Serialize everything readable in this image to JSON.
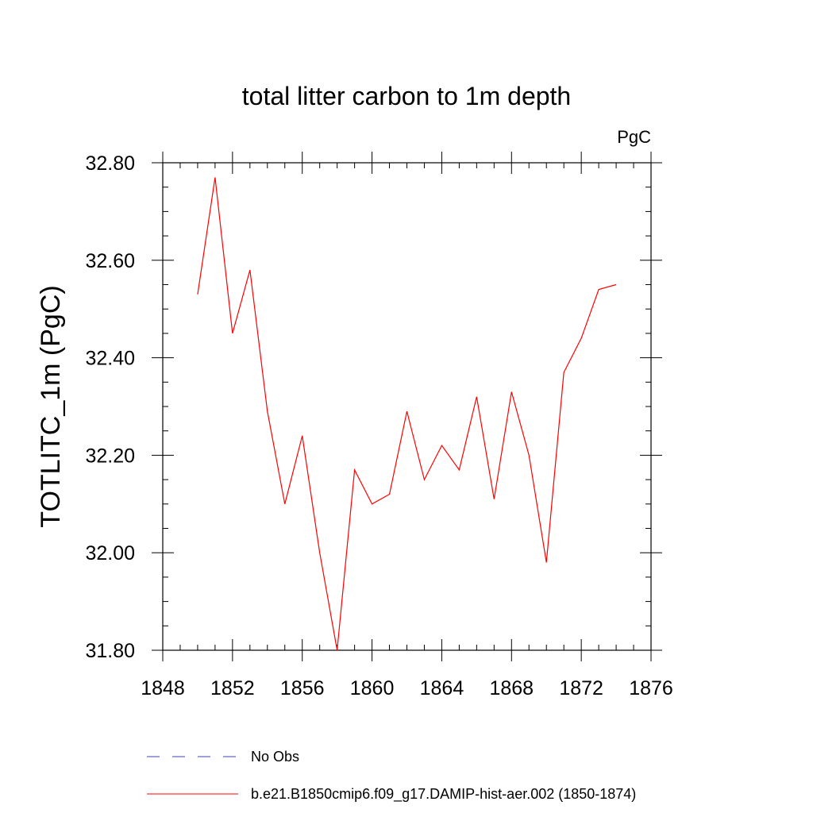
{
  "chart_data": {
    "type": "line",
    "title": "total litter carbon to 1m depth",
    "units": "PgC",
    "xlabel": "",
    "ylabel": "TOTLITC_1m  (PgC)",
    "xlim": [
      1848,
      1876
    ],
    "ylim": [
      31.8,
      32.8
    ],
    "x_ticks": [
      "1848",
      "1852",
      "1856",
      "1860",
      "1864",
      "1868",
      "1872",
      "1876"
    ],
    "y_ticks": [
      "31.80",
      "32.00",
      "32.20",
      "32.40",
      "32.60",
      "32.80"
    ],
    "grid": false,
    "series": [
      {
        "name": "b.e21.B1850cmip6.f09_g17.DAMIP-hist-aer.002 (1850-1874)",
        "color": "#ff0000",
        "x": [
          1850,
          1851,
          1852,
          1853,
          1854,
          1855,
          1856,
          1857,
          1858,
          1859,
          1860,
          1861,
          1862,
          1863,
          1864,
          1865,
          1866,
          1867,
          1868,
          1869,
          1870,
          1871,
          1872,
          1873,
          1874
        ],
        "y": [
          32.53,
          32.77,
          32.45,
          32.58,
          32.29,
          32.1,
          32.24,
          32.0,
          31.8,
          32.17,
          32.1,
          32.12,
          32.29,
          32.15,
          32.22,
          32.17,
          32.32,
          32.11,
          32.33,
          32.2,
          31.98,
          32.37,
          32.44,
          32.54,
          32.55
        ]
      }
    ],
    "legend": [
      {
        "label": "No Obs",
        "color": "#3f3fbf",
        "style": "dashed"
      },
      {
        "label": "b.e21.B1850cmip6.f09_g17.DAMIP-hist-aer.002 (1850-1874)",
        "color": "#ff0000",
        "style": "solid"
      }
    ]
  }
}
